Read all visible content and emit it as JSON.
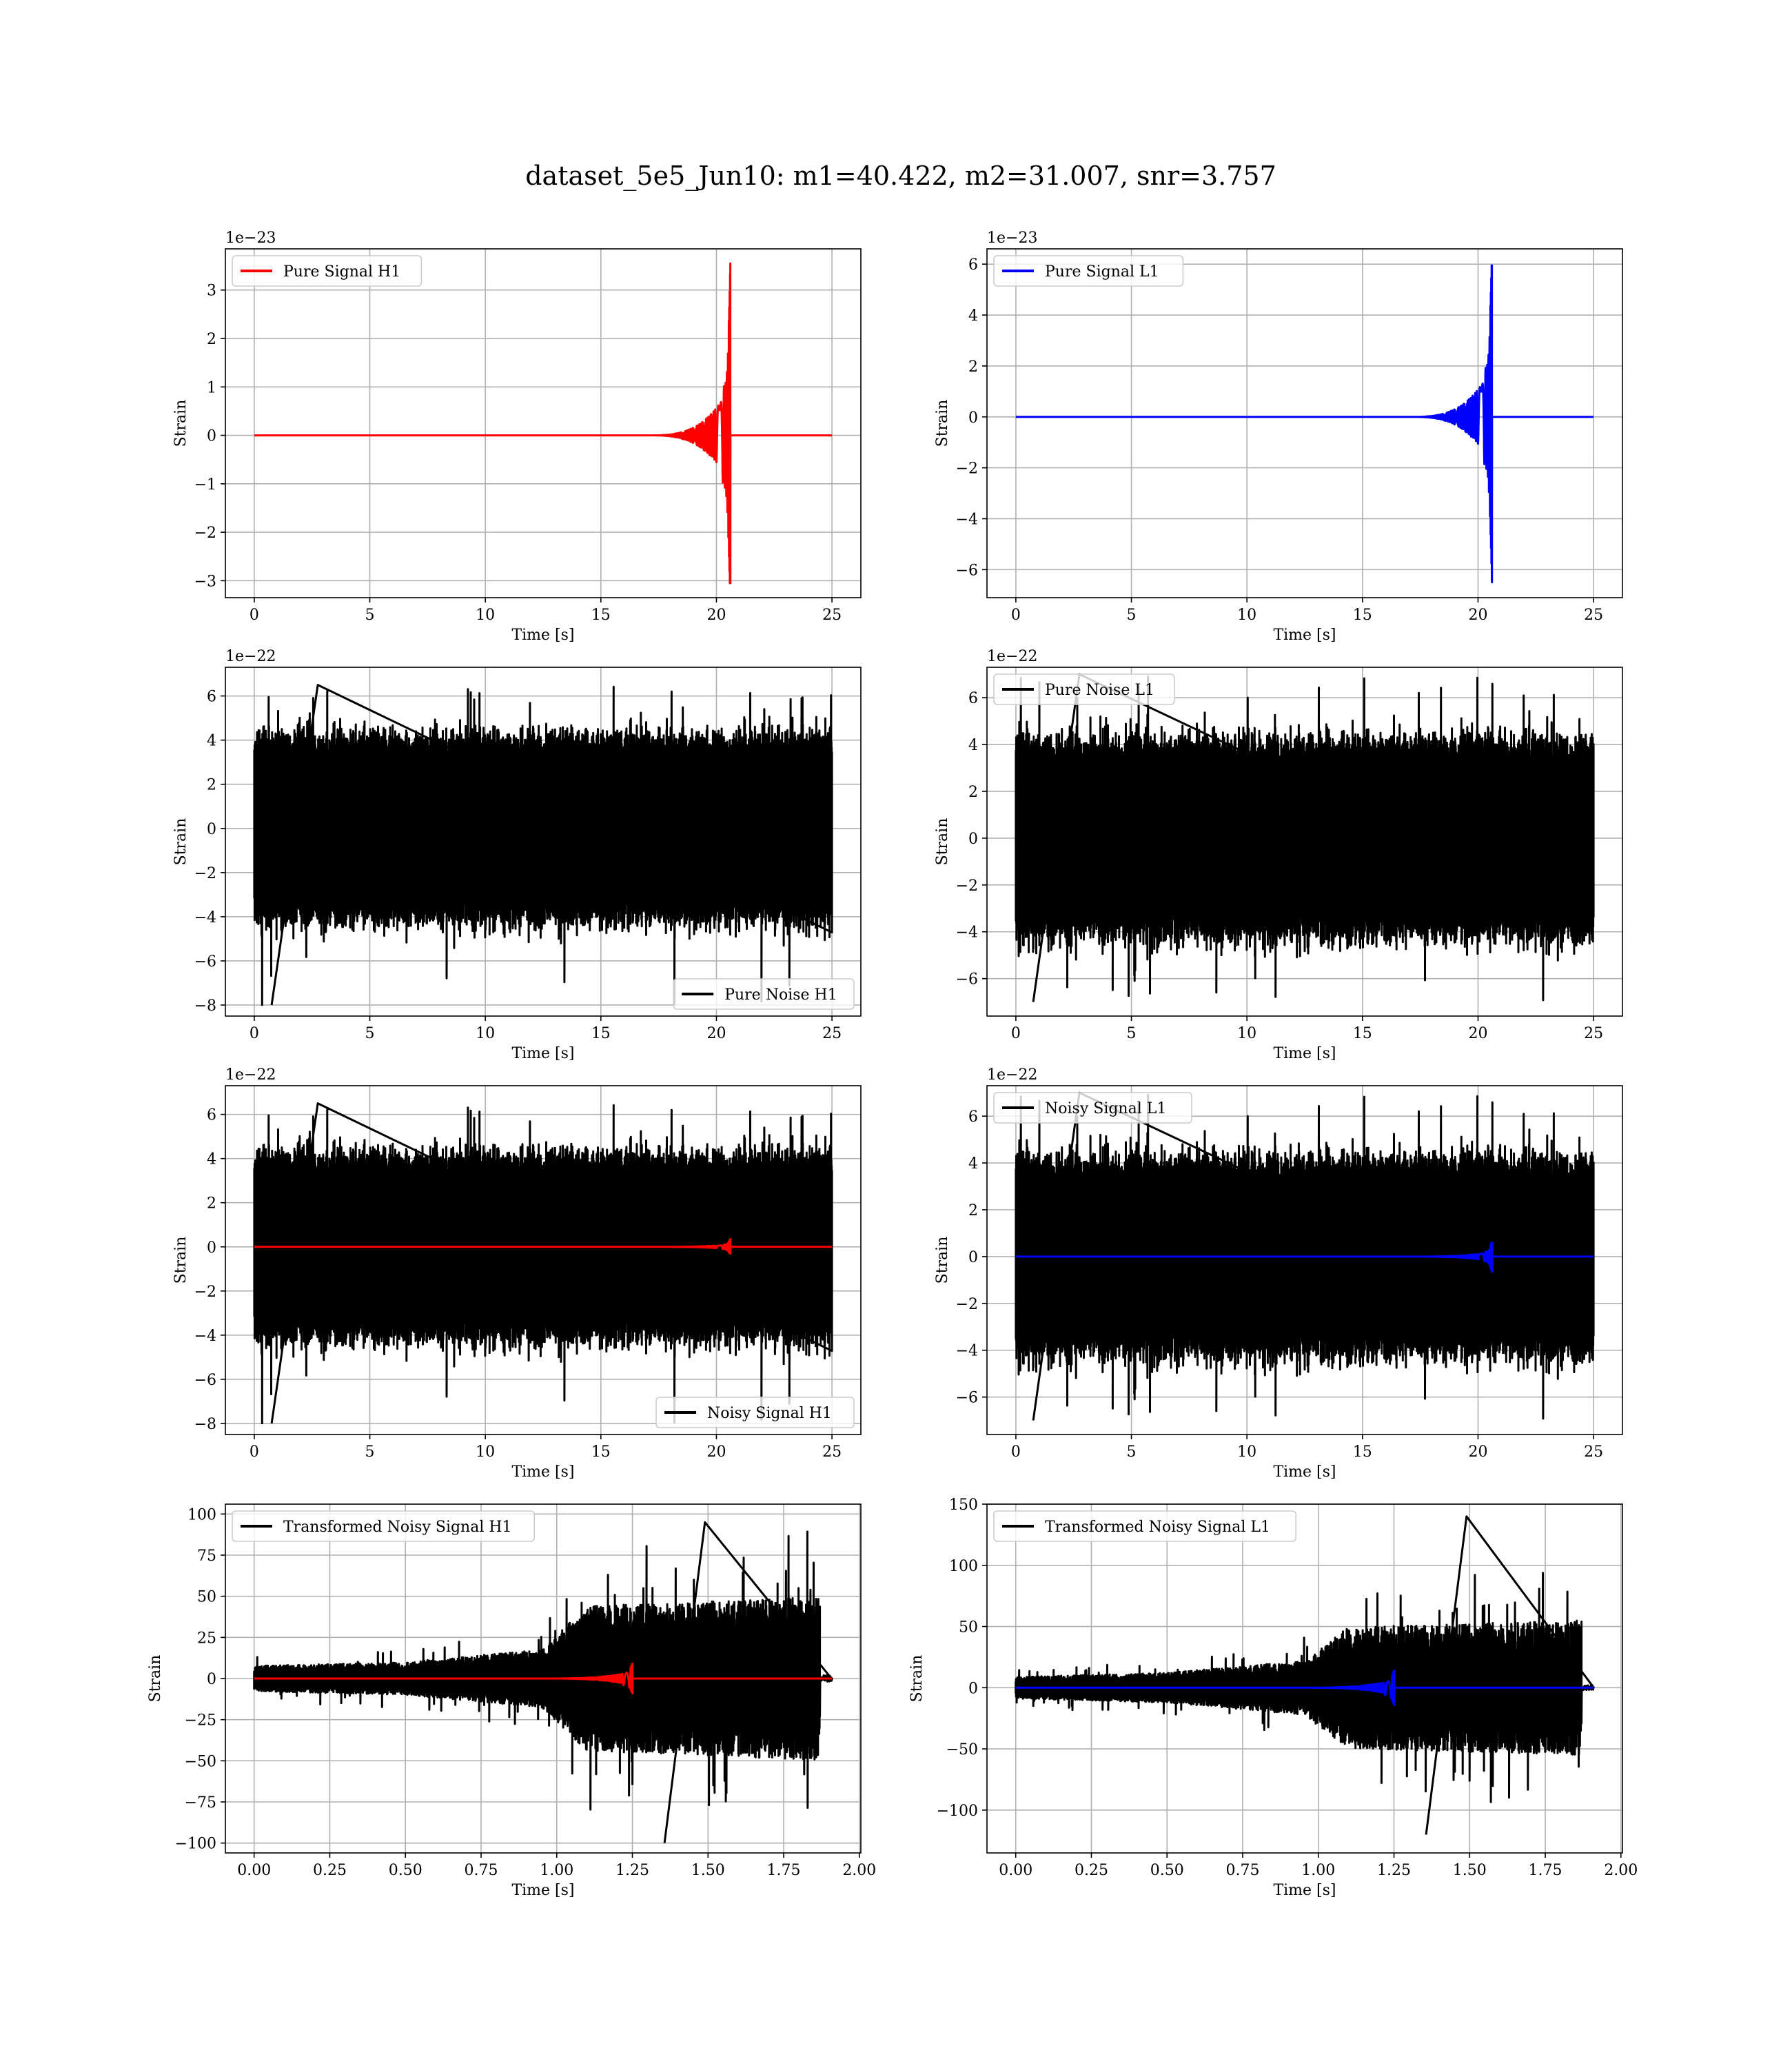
{
  "figure": {
    "title": "dataset_5e5_Jun10: m1=40.422, m2=31.007, snr=3.757",
    "background": "#ffffff"
  },
  "chart_data": [
    {
      "type": "line",
      "legend": [
        "Pure Signal H1"
      ],
      "legend_loc": "top-left",
      "xlabel": "Time [s]",
      "ylabel": "Strain",
      "y_offset_label": "1e−23",
      "xlim": [
        -1.25,
        26.25
      ],
      "ylim": [
        -3.35,
        3.85
      ],
      "xticks": [
        0,
        5,
        10,
        15,
        20,
        25
      ],
      "xtick_labels": [
        "0",
        "5",
        "10",
        "15",
        "20",
        "25"
      ],
      "yticks": [
        -3,
        -2,
        -1,
        0,
        1,
        2,
        3
      ],
      "ytick_labels": [
        "−3",
        "−2",
        "−1",
        "0",
        "1",
        "2",
        "3"
      ],
      "grid": true,
      "series": [
        {
          "name": "Pure Signal H1",
          "color": "#ff0000",
          "kind": "chirp",
          "x_range": [
            0,
            25
          ],
          "merger_t": 20.6,
          "peak_pos": 3.55,
          "peak_neg": -3.05,
          "plateau": 1.0,
          "start_t": 18.3
        }
      ]
    },
    {
      "type": "line",
      "legend": [
        "Pure Signal L1"
      ],
      "legend_loc": "top-left",
      "xlabel": "Time [s]",
      "ylabel": "Strain",
      "y_offset_label": "1e−23",
      "xlim": [
        -1.25,
        26.25
      ],
      "ylim": [
        -7.1,
        6.6
      ],
      "xticks": [
        0,
        5,
        10,
        15,
        20,
        25
      ],
      "xtick_labels": [
        "0",
        "5",
        "10",
        "15",
        "20",
        "25"
      ],
      "yticks": [
        -6,
        -4,
        -2,
        0,
        2,
        4,
        6
      ],
      "ytick_labels": [
        "−6",
        "−4",
        "−2",
        "0",
        "2",
        "4",
        "6"
      ],
      "grid": true,
      "series": [
        {
          "name": "Pure Signal L1",
          "color": "#0000ff",
          "kind": "chirp",
          "x_range": [
            0,
            25
          ],
          "merger_t": 20.6,
          "peak_pos": 5.95,
          "peak_neg": -6.5,
          "plateau": 1.9,
          "start_t": 18.3
        }
      ]
    },
    {
      "type": "line",
      "legend": [
        "Pure Noise H1"
      ],
      "legend_loc": "bottom-right",
      "xlabel": "Time [s]",
      "ylabel": "Strain",
      "y_offset_label": "1e−22",
      "xlim": [
        -1.25,
        26.25
      ],
      "ylim": [
        -8.5,
        7.3
      ],
      "xticks": [
        0,
        5,
        10,
        15,
        20,
        25
      ],
      "xtick_labels": [
        "0",
        "5",
        "10",
        "15",
        "20",
        "25"
      ],
      "yticks": [
        -8,
        -6,
        -4,
        -2,
        0,
        2,
        4,
        6
      ],
      "ytick_labels": [
        "−8",
        "−6",
        "−4",
        "−2",
        "0",
        "2",
        "4",
        "6"
      ],
      "grid": true,
      "series": [
        {
          "name": "Pure Noise H1",
          "color": "#000000",
          "kind": "noise",
          "x_range": [
            0,
            25
          ],
          "core": 3.3,
          "spike_max": 6.5,
          "spike_min": -8.0,
          "seed": 11
        }
      ]
    },
    {
      "type": "line",
      "legend": [
        "Pure Noise L1"
      ],
      "legend_loc": "top-left",
      "xlabel": "Time [s]",
      "ylabel": "Strain",
      "y_offset_label": "1e−22",
      "xlim": [
        -1.25,
        26.25
      ],
      "ylim": [
        -7.6,
        7.3
      ],
      "xticks": [
        0,
        5,
        10,
        15,
        20,
        25
      ],
      "xtick_labels": [
        "0",
        "5",
        "10",
        "15",
        "20",
        "25"
      ],
      "yticks": [
        -6,
        -4,
        -2,
        0,
        2,
        4,
        6
      ],
      "ytick_labels": [
        "−6",
        "−4",
        "−2",
        "0",
        "2",
        "4",
        "6"
      ],
      "grid": true,
      "series": [
        {
          "name": "Pure Noise L1",
          "color": "#000000",
          "kind": "noise",
          "x_range": [
            0,
            25
          ],
          "core": 3.3,
          "spike_max": 7.0,
          "spike_min": -7.0,
          "seed": 23
        }
      ]
    },
    {
      "type": "line",
      "legend": [
        "Noisy Signal H1"
      ],
      "legend_loc": "bottom-right",
      "xlabel": "Time [s]",
      "ylabel": "Strain",
      "y_offset_label": "1e−22",
      "xlim": [
        -1.25,
        26.25
      ],
      "ylim": [
        -8.5,
        7.3
      ],
      "xticks": [
        0,
        5,
        10,
        15,
        20,
        25
      ],
      "xtick_labels": [
        "0",
        "5",
        "10",
        "15",
        "20",
        "25"
      ],
      "yticks": [
        -8,
        -6,
        -4,
        -2,
        0,
        2,
        4,
        6
      ],
      "ytick_labels": [
        "−8",
        "−6",
        "−4",
        "−2",
        "0",
        "2",
        "4",
        "6"
      ],
      "grid": true,
      "series": [
        {
          "name": "Noisy Signal H1",
          "color": "#000000",
          "kind": "noise",
          "x_range": [
            0,
            25
          ],
          "core": 3.3,
          "spike_max": 6.5,
          "spike_min": -8.0,
          "seed": 11
        },
        {
          "color": "#ff0000",
          "kind": "chirp",
          "x_range": [
            0,
            25
          ],
          "merger_t": 20.6,
          "peak_pos": 0.35,
          "peak_neg": -0.3,
          "plateau": 0.1,
          "start_t": 18.3
        }
      ]
    },
    {
      "type": "line",
      "legend": [
        "Noisy Signal L1"
      ],
      "legend_loc": "top-left",
      "xlabel": "Time [s]",
      "ylabel": "Strain",
      "y_offset_label": "1e−22",
      "xlim": [
        -1.25,
        26.25
      ],
      "ylim": [
        -7.6,
        7.3
      ],
      "xticks": [
        0,
        5,
        10,
        15,
        20,
        25
      ],
      "xtick_labels": [
        "0",
        "5",
        "10",
        "15",
        "20",
        "25"
      ],
      "yticks": [
        -6,
        -4,
        -2,
        0,
        2,
        4,
        6
      ],
      "ytick_labels": [
        "−6",
        "−4",
        "−2",
        "0",
        "2",
        "4",
        "6"
      ],
      "grid": true,
      "series": [
        {
          "name": "Noisy Signal L1",
          "color": "#000000",
          "kind": "noise",
          "x_range": [
            0,
            25
          ],
          "core": 3.3,
          "spike_max": 7.0,
          "spike_min": -7.0,
          "seed": 23
        },
        {
          "color": "#0000ff",
          "kind": "chirp",
          "x_range": [
            0,
            25
          ],
          "merger_t": 20.6,
          "peak_pos": 0.6,
          "peak_neg": -0.65,
          "plateau": 0.2,
          "start_t": 18.3
        }
      ]
    },
    {
      "type": "line",
      "legend": [
        "Transformed Noisy Signal H1"
      ],
      "legend_loc": "top-left",
      "xlabel": "Time [s]",
      "ylabel": "Strain",
      "y_offset_label": "",
      "xlim": [
        -0.095,
        2.005
      ],
      "ylim": [
        -106,
        106
      ],
      "xticks": [
        0.0,
        0.25,
        0.5,
        0.75,
        1.0,
        1.25,
        1.5,
        1.75,
        2.0
      ],
      "xtick_labels": [
        "0.00",
        "0.25",
        "0.50",
        "0.75",
        "1.00",
        "1.25",
        "1.50",
        "1.75",
        "2.00"
      ],
      "yticks": [
        -100,
        -75,
        -50,
        -25,
        0,
        25,
        50,
        75,
        100
      ],
      "ytick_labels": [
        "−100",
        "−75",
        "−50",
        "−25",
        "0",
        "25",
        "50",
        "75",
        "100"
      ],
      "grid": true,
      "series": [
        {
          "name": "Transformed Noisy Signal H1",
          "color": "#000000",
          "kind": "whitened",
          "x_range": [
            0,
            1.91
          ],
          "seed": 37,
          "end_t": 1.87,
          "envelope": [
            [
              0,
              7
            ],
            [
              0.5,
              9
            ],
            [
              0.95,
              16
            ],
            [
              1.1,
              40
            ],
            [
              1.87,
              45
            ]
          ],
          "spike_max": 95,
          "spike_min": -100
        },
        {
          "color": "#ff0000",
          "kind": "chirp",
          "x_range": [
            0,
            1.91
          ],
          "merger_t": 1.25,
          "peak_pos": 9,
          "peak_neg": -9,
          "plateau": 4,
          "start_t": 1.05
        }
      ]
    },
    {
      "type": "line",
      "legend": [
        "Transformed Noisy Signal L1"
      ],
      "legend_loc": "top-left",
      "xlabel": "Time [s]",
      "ylabel": "Strain",
      "y_offset_label": "",
      "xlim": [
        -0.095,
        2.005
      ],
      "ylim": [
        -135,
        150
      ],
      "xticks": [
        0.0,
        0.25,
        0.5,
        0.75,
        1.0,
        1.25,
        1.5,
        1.75,
        2.0
      ],
      "xtick_labels": [
        "0.00",
        "0.25",
        "0.50",
        "0.75",
        "1.00",
        "1.25",
        "1.50",
        "1.75",
        "2.00"
      ],
      "yticks": [
        -100,
        -50,
        0,
        50,
        100,
        150
      ],
      "ytick_labels": [
        "−100",
        "−50",
        "0",
        "50",
        "100",
        "150"
      ],
      "grid": true,
      "series": [
        {
          "name": "Transformed Noisy Signal L1",
          "color": "#000000",
          "kind": "whitened",
          "x_range": [
            0,
            1.91
          ],
          "seed": 53,
          "end_t": 1.87,
          "envelope": [
            [
              0,
              8
            ],
            [
              0.5,
              11
            ],
            [
              0.95,
              20
            ],
            [
              1.1,
              45
            ],
            [
              1.87,
              50
            ]
          ],
          "spike_max": 140,
          "spike_min": -120
        },
        {
          "color": "#0000ff",
          "kind": "chirp",
          "x_range": [
            0,
            1.91
          ],
          "merger_t": 1.25,
          "peak_pos": 14,
          "peak_neg": -14,
          "plateau": 6,
          "start_t": 1.05
        }
      ]
    }
  ]
}
